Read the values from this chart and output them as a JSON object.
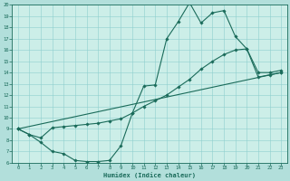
{
  "title": "",
  "xlabel": "Humidex (Indice chaleur)",
  "bg_color": "#b2dfdb",
  "plot_bg_color": "#cceee8",
  "line_color": "#1a6b5a",
  "grid_color": "#8ecece",
  "xlim": [
    -0.5,
    23.5
  ],
  "ylim": [
    6,
    20
  ],
  "xticks": [
    0,
    1,
    2,
    3,
    4,
    5,
    6,
    7,
    8,
    9,
    10,
    11,
    12,
    13,
    14,
    15,
    16,
    17,
    18,
    19,
    20,
    21,
    22,
    23
  ],
  "yticks": [
    6,
    7,
    8,
    9,
    10,
    11,
    12,
    13,
    14,
    15,
    16,
    17,
    18,
    19,
    20
  ],
  "line1_x": [
    0,
    1,
    2,
    3,
    4,
    5,
    6,
    7,
    8,
    9,
    10,
    11,
    12,
    13,
    14,
    15,
    16,
    17,
    18,
    19,
    20,
    21,
    22,
    23
  ],
  "line1_y": [
    9.0,
    8.5,
    7.8,
    7.0,
    6.8,
    6.2,
    6.1,
    6.1,
    6.2,
    7.5,
    10.4,
    12.8,
    12.9,
    17.0,
    18.5,
    20.2,
    18.4,
    19.3,
    19.5,
    17.2,
    16.1,
    14.0,
    14.0,
    14.2
  ],
  "line2_x": [
    0,
    1,
    2,
    3,
    4,
    5,
    6,
    7,
    8,
    9,
    10,
    11,
    12,
    13,
    14,
    15,
    16,
    17,
    18,
    19,
    20,
    21,
    22,
    23
  ],
  "line2_y": [
    9.0,
    8.5,
    8.2,
    9.1,
    9.2,
    9.3,
    9.4,
    9.5,
    9.7,
    9.9,
    10.4,
    11.0,
    11.5,
    12.0,
    12.7,
    13.4,
    14.3,
    15.0,
    15.6,
    16.0,
    16.1,
    13.6,
    13.8,
    14.0
  ],
  "line3_x": [
    0,
    23
  ],
  "line3_y": [
    9.0,
    14.0
  ],
  "marker": "D",
  "markersize": 1.8,
  "linewidth": 0.8
}
